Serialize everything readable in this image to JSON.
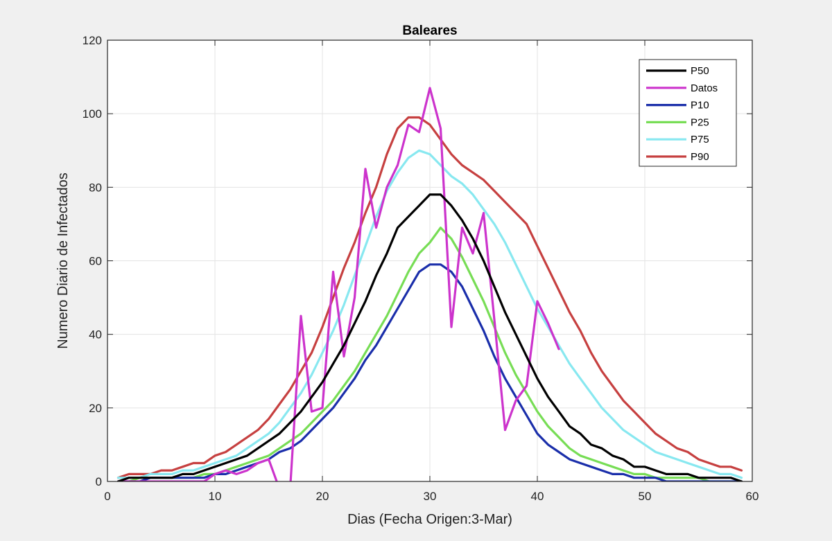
{
  "chart_data": {
    "type": "line",
    "title": "Baleares",
    "xlabel": "Dias (Fecha Origen:3-Mar)",
    "ylabel": "Numero Diario de Infectados",
    "xlim": [
      0,
      60
    ],
    "ylim": [
      0,
      120
    ],
    "xticks": [
      0,
      10,
      20,
      30,
      40,
      50,
      60
    ],
    "yticks": [
      0,
      20,
      40,
      60,
      80,
      100,
      120
    ],
    "grid": true,
    "legend_position": "top-right",
    "series": [
      {
        "name": "P50",
        "color": "#000000",
        "x": [
          1,
          2,
          3,
          4,
          5,
          6,
          7,
          8,
          9,
          10,
          11,
          12,
          13,
          14,
          15,
          16,
          17,
          18,
          19,
          20,
          21,
          22,
          23,
          24,
          25,
          26,
          27,
          28,
          29,
          30,
          31,
          32,
          33,
          34,
          35,
          36,
          37,
          38,
          39,
          40,
          41,
          42,
          43,
          44,
          45,
          46,
          47,
          48,
          49,
          50,
          51,
          52,
          53,
          54,
          55,
          56,
          57,
          58,
          59
        ],
        "y": [
          0,
          1,
          1,
          1,
          1,
          1,
          2,
          2,
          3,
          4,
          5,
          6,
          7,
          9,
          11,
          13,
          16,
          19,
          23,
          27,
          32,
          37,
          43,
          49,
          56,
          62,
          69,
          72,
          75,
          78,
          78,
          75,
          71,
          66,
          60,
          53,
          46,
          40,
          34,
          28,
          23,
          19,
          15,
          13,
          10,
          9,
          7,
          6,
          4,
          4,
          3,
          2,
          2,
          2,
          1,
          1,
          1,
          1,
          0
        ]
      },
      {
        "name": "Datos",
        "color": "#cc33cc",
        "x": [
          1,
          2,
          3,
          4,
          5,
          6,
          7,
          8,
          9,
          10,
          11,
          12,
          13,
          14,
          15,
          16,
          17,
          18,
          19,
          20,
          21,
          22,
          23,
          24,
          25,
          26,
          27,
          28,
          29,
          30,
          31,
          32,
          33,
          34,
          35,
          36,
          37,
          38,
          39,
          40,
          41,
          42
        ],
        "y": [
          0,
          0,
          0,
          0,
          0,
          0,
          0,
          0,
          0,
          2,
          3,
          2,
          3,
          5,
          6,
          -2,
          -2,
          45,
          19,
          20,
          57,
          34,
          50,
          85,
          69,
          80,
          86,
          97,
          95,
          107,
          96,
          42,
          69,
          62,
          73,
          44,
          14,
          22,
          26,
          49,
          43,
          36
        ]
      },
      {
        "name": "P10",
        "color": "#1a2eaa",
        "x": [
          1,
          2,
          3,
          4,
          5,
          6,
          7,
          8,
          9,
          10,
          11,
          12,
          13,
          14,
          15,
          16,
          17,
          18,
          19,
          20,
          21,
          22,
          23,
          24,
          25,
          26,
          27,
          28,
          29,
          30,
          31,
          32,
          33,
          34,
          35,
          36,
          37,
          38,
          39,
          40,
          41,
          42,
          43,
          44,
          45,
          46,
          47,
          48,
          49,
          50,
          51,
          52,
          53,
          54,
          55,
          56,
          57,
          58,
          59
        ],
        "y": [
          0,
          0,
          0,
          1,
          1,
          1,
          1,
          1,
          1,
          2,
          2,
          3,
          4,
          5,
          6,
          8,
          9,
          11,
          14,
          17,
          20,
          24,
          28,
          33,
          37,
          42,
          47,
          52,
          57,
          59,
          59,
          57,
          53,
          47,
          41,
          34,
          28,
          23,
          18,
          13,
          10,
          8,
          6,
          5,
          4,
          3,
          2,
          2,
          1,
          1,
          1,
          0,
          0,
          0,
          0,
          0,
          0,
          0,
          0
        ]
      },
      {
        "name": "P25",
        "color": "#77dd55",
        "x": [
          1,
          2,
          3,
          4,
          5,
          6,
          7,
          8,
          9,
          10,
          11,
          12,
          13,
          14,
          15,
          16,
          17,
          18,
          19,
          20,
          21,
          22,
          23,
          24,
          25,
          26,
          27,
          28,
          29,
          30,
          31,
          32,
          33,
          34,
          35,
          36,
          37,
          38,
          39,
          40,
          41,
          42,
          43,
          44,
          45,
          46,
          47,
          48,
          49,
          50,
          51,
          52,
          53,
          54,
          55,
          56,
          57,
          58,
          59
        ],
        "y": [
          0,
          0,
          1,
          1,
          1,
          1,
          1,
          1,
          2,
          2,
          3,
          4,
          5,
          6,
          7,
          9,
          11,
          13,
          16,
          19,
          22,
          26,
          30,
          35,
          40,
          45,
          51,
          57,
          62,
          65,
          69,
          66,
          61,
          55,
          49,
          42,
          35,
          29,
          24,
          19,
          15,
          12,
          9,
          7,
          6,
          5,
          4,
          3,
          2,
          2,
          1,
          1,
          1,
          1,
          1,
          0,
          0,
          0,
          0
        ]
      },
      {
        "name": "P75",
        "color": "#88e8f0",
        "x": [
          1,
          2,
          3,
          4,
          5,
          6,
          7,
          8,
          9,
          10,
          11,
          12,
          13,
          14,
          15,
          16,
          17,
          18,
          19,
          20,
          21,
          22,
          23,
          24,
          25,
          26,
          27,
          28,
          29,
          30,
          31,
          32,
          33,
          34,
          35,
          36,
          37,
          38,
          39,
          40,
          41,
          42,
          43,
          44,
          45,
          46,
          47,
          48,
          49,
          50,
          51,
          52,
          53,
          54,
          55,
          56,
          57,
          58,
          59
        ],
        "y": [
          1,
          1,
          1,
          2,
          2,
          2,
          3,
          3,
          4,
          5,
          6,
          7,
          9,
          11,
          13,
          16,
          20,
          24,
          29,
          35,
          41,
          48,
          56,
          64,
          72,
          79,
          84,
          88,
          90,
          89,
          86,
          83,
          81,
          78,
          74,
          70,
          65,
          59,
          53,
          47,
          42,
          37,
          32,
          28,
          24,
          20,
          17,
          14,
          12,
          10,
          8,
          7,
          6,
          5,
          4,
          3,
          2,
          2,
          1
        ]
      },
      {
        "name": "P90",
        "color": "#c64040",
        "x": [
          1,
          2,
          3,
          4,
          5,
          6,
          7,
          8,
          9,
          10,
          11,
          12,
          13,
          14,
          15,
          16,
          17,
          18,
          19,
          20,
          21,
          22,
          23,
          24,
          25,
          26,
          27,
          28,
          29,
          30,
          31,
          32,
          33,
          34,
          35,
          36,
          37,
          38,
          39,
          40,
          41,
          42,
          43,
          44,
          45,
          46,
          47,
          48,
          49,
          50,
          51,
          52,
          53,
          54,
          55,
          56,
          57,
          58,
          59
        ],
        "y": [
          1,
          2,
          2,
          2,
          3,
          3,
          4,
          5,
          5,
          7,
          8,
          10,
          12,
          14,
          17,
          21,
          25,
          30,
          35,
          42,
          50,
          58,
          65,
          73,
          80,
          89,
          96,
          99,
          99,
          97,
          93,
          89,
          86,
          84,
          82,
          79,
          76,
          73,
          70,
          64,
          58,
          52,
          46,
          41,
          35,
          30,
          26,
          22,
          19,
          16,
          13,
          11,
          9,
          8,
          6,
          5,
          4,
          4,
          3
        ]
      }
    ]
  }
}
